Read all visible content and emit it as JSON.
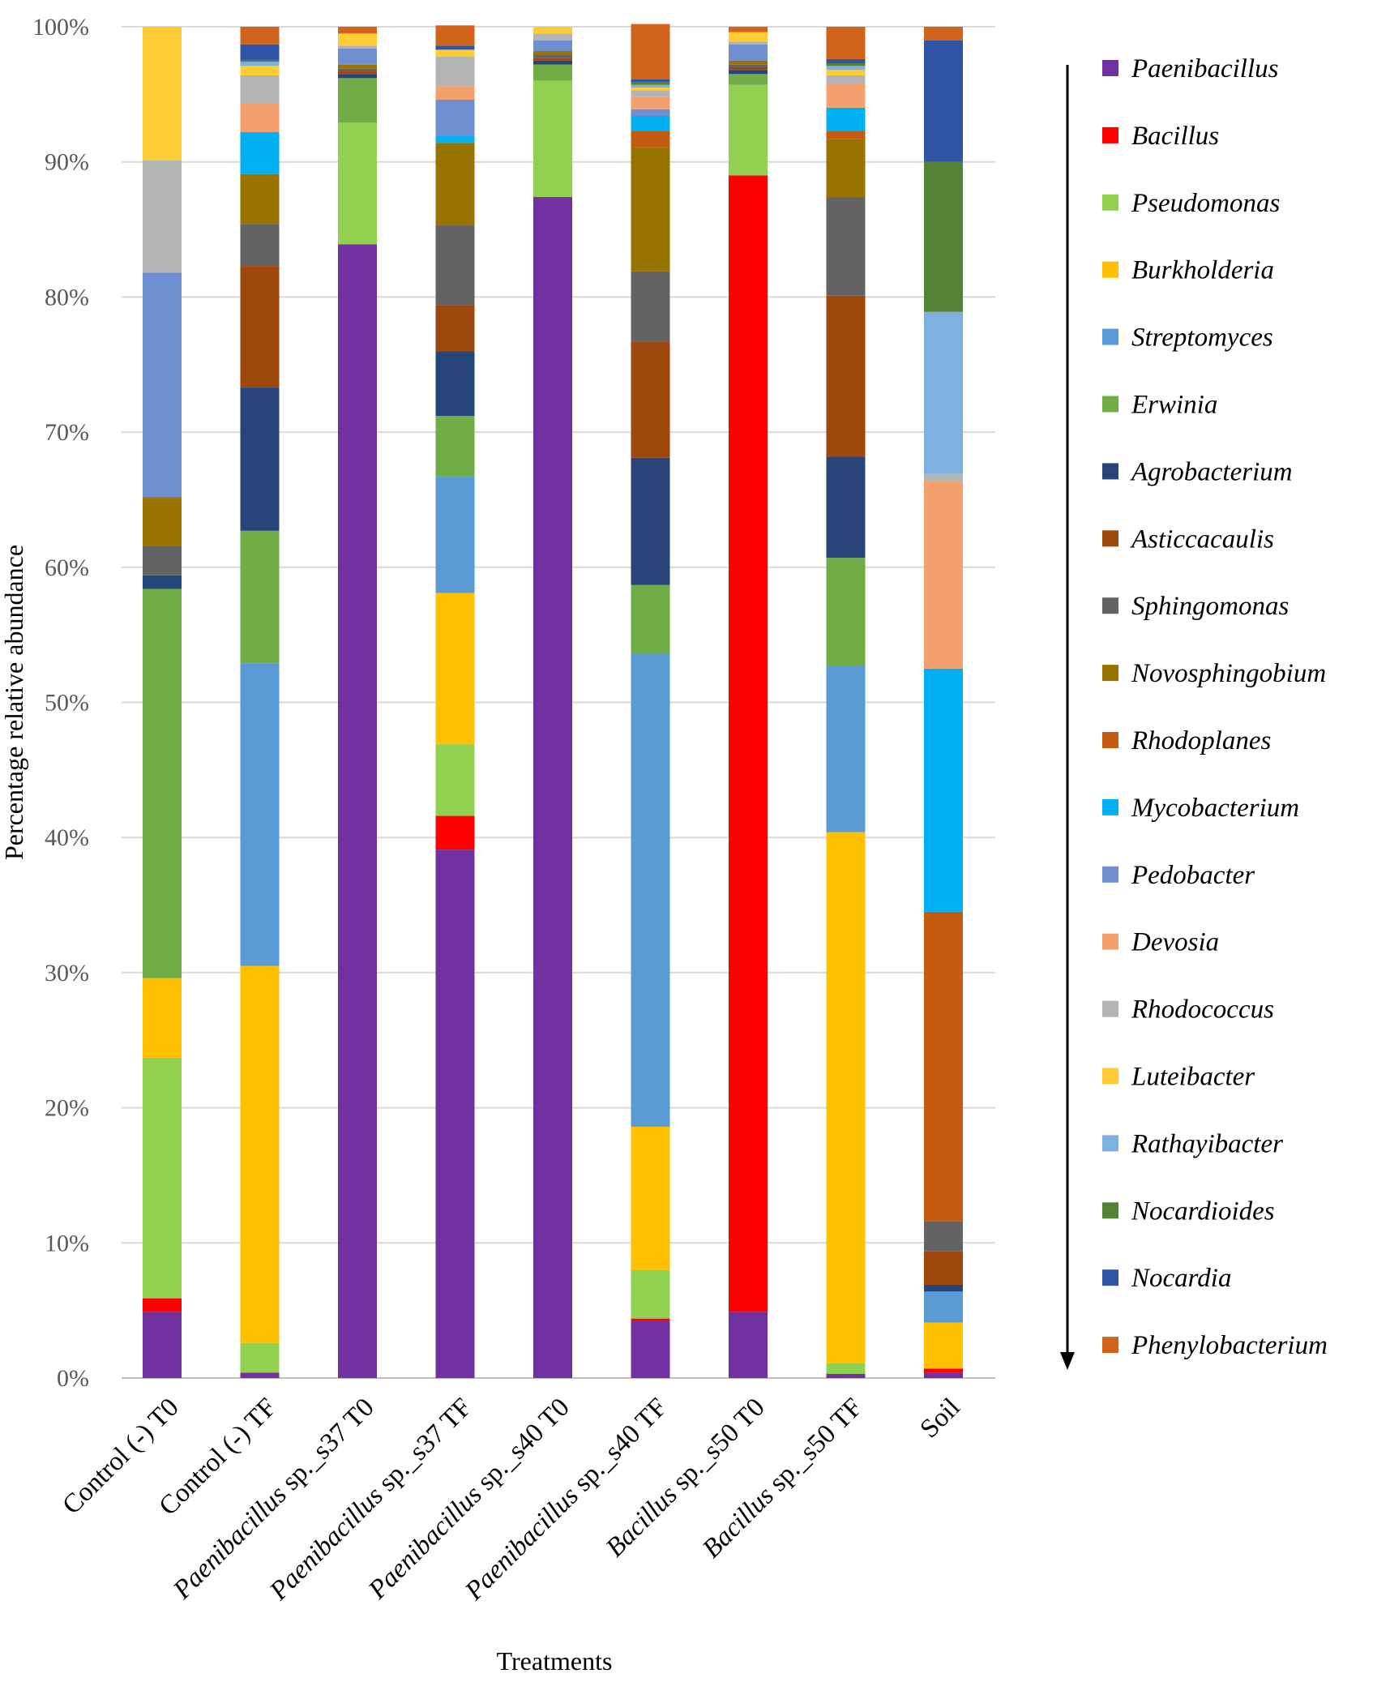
{
  "chart_data": {
    "type": "bar",
    "stacked": true,
    "title": "",
    "xlabel": "Treatments",
    "ylabel": "Percentage relative abundance",
    "ylim": [
      0,
      100
    ],
    "yticks": [
      "0%",
      "10%",
      "20%",
      "30%",
      "40%",
      "50%",
      "60%",
      "70%",
      "80%",
      "90%",
      "100%"
    ],
    "grid": true,
    "legend_position": "right",
    "legend_arrow": "top-to-bottom",
    "categories": [
      {
        "plain": "Control (-) T0",
        "italic": "",
        "rest": ""
      },
      {
        "plain": "Control (-) TF",
        "italic": "",
        "rest": ""
      },
      {
        "plain": "",
        "italic": "Paenibacillus",
        "rest": " sp._s37 T0"
      },
      {
        "plain": "",
        "italic": "Paenibacillus",
        "rest": " sp._s37 TF"
      },
      {
        "plain": "",
        "italic": "Paenibacillus",
        "rest": " sp._s40 T0"
      },
      {
        "plain": "",
        "italic": "Paenibacillus",
        "rest": " sp._s40 TF"
      },
      {
        "plain": "",
        "italic": "Bacillus",
        "rest": " sp._s50 T0"
      },
      {
        "plain": "",
        "italic": "Bacillus",
        "rest": " sp._s50 TF"
      },
      {
        "plain": "Soil",
        "italic": "",
        "rest": ""
      }
    ],
    "series": [
      {
        "name": "Paenibacillus",
        "color": "#7030A0",
        "values": [
          4.9,
          0.4,
          83.9,
          39.1,
          87.4,
          4.2,
          4.9,
          0.3,
          0.4
        ]
      },
      {
        "name": "Bacillus",
        "color": "#FF0000",
        "values": [
          1.0,
          0.0,
          0.0,
          2.5,
          0.0,
          0.2,
          84.1,
          0.0,
          0.3
        ]
      },
      {
        "name": "Pseudomonas",
        "color": "#92D050",
        "values": [
          17.8,
          2.2,
          9.0,
          5.3,
          8.6,
          3.6,
          6.7,
          0.8,
          0.0
        ]
      },
      {
        "name": "Burkholderia",
        "color": "#FFC000",
        "values": [
          5.9,
          27.9,
          0.0,
          11.2,
          0.0,
          10.6,
          0.0,
          39.3,
          3.4
        ]
      },
      {
        "name": "Streptomyces",
        "color": "#5B9BD5",
        "values": [
          0.0,
          22.4,
          0.0,
          8.6,
          0.0,
          35.0,
          0.0,
          12.3,
          2.3
        ]
      },
      {
        "name": "Erwinia",
        "color": "#70AD47",
        "values": [
          28.8,
          9.8,
          3.3,
          4.5,
          1.2,
          5.1,
          0.8,
          8.0,
          0.0
        ]
      },
      {
        "name": "Agrobacterium",
        "color": "#264478",
        "values": [
          1.0,
          10.6,
          0.3,
          4.8,
          0.3,
          9.4,
          0.3,
          7.5,
          0.5
        ]
      },
      {
        "name": "Asticcacaulis",
        "color": "#9E480E",
        "values": [
          0.0,
          9.0,
          0.2,
          3.4,
          0.2,
          8.6,
          0.2,
          11.9,
          2.5
        ]
      },
      {
        "name": "Sphingomonas",
        "color": "#636363",
        "values": [
          2.2,
          3.1,
          0.2,
          5.9,
          0.2,
          5.2,
          0.2,
          7.3,
          2.2
        ]
      },
      {
        "name": "Novosphingobium",
        "color": "#997300",
        "values": [
          3.6,
          3.7,
          0.3,
          6.1,
          0.3,
          9.2,
          0.3,
          4.3,
          0.0
        ]
      },
      {
        "name": "Rhodoplanes",
        "color": "#C55A11",
        "values": [
          0.0,
          0.0,
          0.0,
          0.0,
          0.0,
          1.2,
          0.0,
          0.6,
          22.9
        ]
      },
      {
        "name": "Mycobacterium",
        "color": "#00B0F0",
        "values": [
          0.0,
          3.1,
          0.0,
          0.5,
          0.0,
          1.1,
          0.0,
          1.7,
          18.0
        ]
      },
      {
        "name": "Pedobacter",
        "color": "#6F8FD0",
        "values": [
          16.6,
          0.0,
          1.2,
          2.7,
          0.8,
          0.5,
          1.2,
          0.0,
          0.0
        ]
      },
      {
        "name": "Devosia",
        "color": "#F4A06E",
        "values": [
          0.0,
          2.1,
          0.0,
          1.0,
          0.0,
          0.9,
          0.0,
          1.8,
          13.9
        ]
      },
      {
        "name": "Rhodococcus",
        "color": "#B4B4B4",
        "values": [
          8.3,
          2.1,
          0.2,
          2.2,
          0.5,
          0.5,
          0.2,
          0.6,
          0.5
        ]
      },
      {
        "name": "Luteibacter",
        "color": "#FFCC33",
        "values": [
          9.9,
          0.7,
          0.9,
          0.5,
          0.5,
          0.2,
          0.7,
          0.4,
          0.0
        ]
      },
      {
        "name": "Rathayibacter",
        "color": "#7EB0E0",
        "values": [
          0.0,
          0.3,
          0.0,
          0.0,
          0.0,
          0.2,
          0.0,
          0.3,
          12.0
        ]
      },
      {
        "name": "Nocardioides",
        "color": "#548235",
        "values": [
          0.0,
          0.1,
          0.0,
          0.0,
          0.0,
          0.2,
          0.0,
          0.2,
          11.1
        ]
      },
      {
        "name": "Nocardia",
        "color": "#2F55A4",
        "values": [
          0.0,
          1.2,
          0.0,
          0.3,
          0.0,
          0.2,
          0.0,
          0.3,
          9.0
        ]
      },
      {
        "name": "Phenylobacterium",
        "color": "#D1641A",
        "values": [
          0.0,
          1.3,
          0.5,
          1.5,
          0.0,
          4.1,
          0.4,
          2.4,
          1.0
        ]
      }
    ]
  }
}
